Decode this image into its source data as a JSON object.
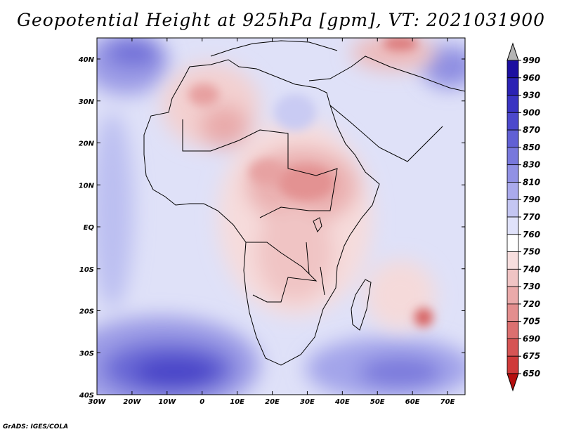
{
  "title": "Geopotential Height at 925hPa [gpm], VT: 2021031900",
  "credit": "GrADS: IGES/COLA",
  "map": {
    "lon_ticks": [
      "30W",
      "20W",
      "10W",
      "0",
      "10E",
      "20E",
      "30E",
      "40E",
      "50E",
      "60E",
      "70E"
    ],
    "lat_ticks": [
      "40N",
      "30N",
      "20N",
      "10N",
      "EQ",
      "10S",
      "20S",
      "30S",
      "40S"
    ],
    "extent": {
      "lon_min": -30,
      "lon_max": 75,
      "lat_min": -40,
      "lat_max": 45
    }
  },
  "colorbar": {
    "levels": [
      "990",
      "960",
      "930",
      "900",
      "870",
      "850",
      "830",
      "810",
      "790",
      "770",
      "760",
      "750",
      "740",
      "730",
      "720",
      "705",
      "690",
      "675",
      "650"
    ],
    "colors": [
      "#1c0fa0",
      "#2b22b4",
      "#3a34c2",
      "#4c48cc",
      "#6160d4",
      "#7878dc",
      "#9191e4",
      "#aaaaec",
      "#c4c6f2",
      "#e0e2fa",
      "#ffffff",
      "#f7dede",
      "#f0c4c4",
      "#eaaaaa",
      "#e38e8e",
      "#dc7070",
      "#d65454",
      "#cf3a3a",
      "#c62020",
      "#b50f0f"
    ]
  },
  "features": [
    {
      "name": "sahara-high-low-zone",
      "lon": 0,
      "lat": 28,
      "level": 735
    },
    {
      "name": "central-africa-low",
      "lon": 30,
      "lat": 8,
      "level": 730
    },
    {
      "name": "madagascar-east-low",
      "lon": 63,
      "lat": -21,
      "level": 705
    },
    {
      "name": "atlantic-high",
      "lon": -10,
      "lat": -33,
      "level": 900
    },
    {
      "name": "indian-ocean-high",
      "lon": 58,
      "lat": -34,
      "level": 870
    },
    {
      "name": "north-atlantic-high",
      "lon": -22,
      "lat": 42,
      "level": 850
    },
    {
      "name": "middle-east-high",
      "lon": 70,
      "lat": 39,
      "level": 850
    }
  ]
}
